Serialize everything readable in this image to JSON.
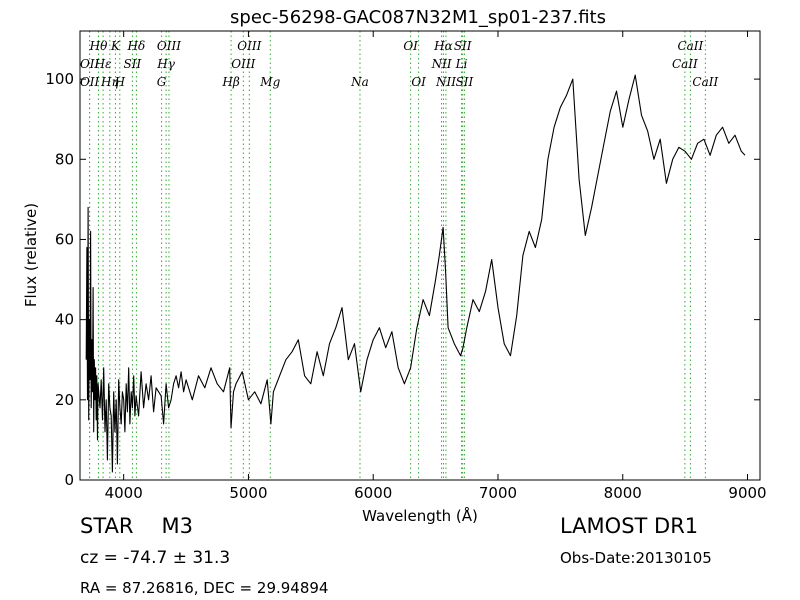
{
  "chart_data": {
    "type": "line",
    "title": "spec-56298-GAC087N32M1_sp01-237.fits",
    "xlabel": "Wavelength (Å)",
    "ylabel": "Flux (relative)",
    "xlim": [
      3650,
      9100
    ],
    "ylim": [
      0,
      112
    ],
    "xticks": [
      4000,
      5000,
      6000,
      7000,
      8000,
      9000
    ],
    "yticks": [
      0,
      20,
      40,
      60,
      80,
      100
    ],
    "line_color": "#000000",
    "marker_color": "#33aa33",
    "grid": false,
    "series": [
      {
        "x": [
          3700,
          3705,
          3710,
          3715,
          3720,
          3725,
          3730,
          3735,
          3740,
          3745,
          3750,
          3755,
          3760,
          3765,
          3770,
          3775,
          3780,
          3785,
          3790,
          3795,
          3800,
          3810,
          3820,
          3830,
          3840,
          3850,
          3860,
          3870,
          3880,
          3890,
          3900,
          3910,
          3920,
          3930,
          3940,
          3950,
          3960,
          3970,
          3980,
          3990,
          4000,
          4010,
          4020,
          4030,
          4040,
          4050,
          4060,
          4070,
          4080,
          4090,
          4100,
          4120,
          4140,
          4160,
          4180,
          4200,
          4220,
          4240,
          4260,
          4280,
          4300,
          4320,
          4340,
          4360,
          4380,
          4400,
          4420,
          4440,
          4460,
          4480,
          4500,
          4550,
          4600,
          4650,
          4700,
          4750,
          4800,
          4850,
          4860,
          4880,
          4900,
          4950,
          5000,
          5050,
          5100,
          5150,
          5180,
          5200,
          5250,
          5300,
          5350,
          5400,
          5450,
          5500,
          5550,
          5600,
          5650,
          5700,
          5750,
          5800,
          5850,
          5900,
          5950,
          6000,
          6050,
          6100,
          6150,
          6200,
          6250,
          6300,
          6350,
          6400,
          6450,
          6500,
          6530,
          6560,
          6580,
          6600,
          6650,
          6700,
          6720,
          6750,
          6800,
          6850,
          6900,
          6950,
          7000,
          7050,
          7100,
          7150,
          7200,
          7250,
          7300,
          7350,
          7400,
          7450,
          7500,
          7550,
          7600,
          7650,
          7700,
          7750,
          7800,
          7850,
          7900,
          7950,
          8000,
          8050,
          8100,
          8150,
          8200,
          8250,
          8300,
          8350,
          8400,
          8450,
          8500,
          8550,
          8600,
          8650,
          8700,
          8750,
          8800,
          8850,
          8900,
          8950,
          8980
        ],
        "y": [
          30,
          58,
          20,
          68,
          15,
          40,
          25,
          62,
          18,
          35,
          22,
          48,
          12,
          30,
          20,
          28,
          15,
          26,
          10,
          24,
          22,
          18,
          25,
          15,
          28,
          12,
          20,
          5,
          24,
          18,
          16,
          2,
          22,
          12,
          20,
          4,
          25,
          18,
          14,
          22,
          20,
          12,
          24,
          17,
          28,
          14,
          22,
          18,
          26,
          16,
          21,
          16,
          27,
          18,
          24,
          20,
          26,
          17,
          23,
          22,
          21,
          14,
          24,
          18,
          20,
          24,
          26,
          23,
          27,
          22,
          25,
          20,
          26,
          23,
          28,
          24,
          22,
          28,
          13,
          22,
          24,
          27,
          20,
          22,
          19,
          25,
          14,
          22,
          26,
          30,
          32,
          35,
          26,
          24,
          32,
          26,
          34,
          38,
          43,
          30,
          34,
          22,
          30,
          35,
          38,
          33,
          37,
          28,
          24,
          28,
          38,
          45,
          41,
          50,
          56,
          63,
          52,
          38,
          34,
          31,
          33,
          38,
          45,
          42,
          47,
          55,
          43,
          34,
          31,
          41,
          56,
          62,
          58,
          65,
          80,
          88,
          93,
          96,
          100,
          75,
          61,
          68,
          76,
          84,
          92,
          97,
          88,
          95,
          101,
          91,
          87,
          80,
          85,
          74,
          80,
          83,
          82,
          80,
          84,
          85,
          81,
          86,
          88,
          84,
          86,
          82,
          81
        ]
      }
    ],
    "annotations": [
      {
        "label": "Hθ",
        "x": 3798,
        "row": 0
      },
      {
        "label": "K",
        "x": 3934,
        "row": 0
      },
      {
        "label": "Hδ",
        "x": 4102,
        "row": 0
      },
      {
        "label": "OIII",
        "x": 4363,
        "row": 0
      },
      {
        "label": "OIII",
        "x": 5007,
        "row": 0
      },
      {
        "label": "OI",
        "x": 6300,
        "row": 0
      },
      {
        "label": "Hα",
        "x": 6563,
        "row": 0
      },
      {
        "label": "SII",
        "x": 6717,
        "row": 0
      },
      {
        "label": "CaII",
        "x": 8542,
        "row": 0
      },
      {
        "label": "OII",
        "x": 3727,
        "row": 1
      },
      {
        "label": "Hε",
        "x": 3835,
        "row": 1
      },
      {
        "label": "SII",
        "x": 4070,
        "row": 1
      },
      {
        "label": "Hγ",
        "x": 4340,
        "row": 1
      },
      {
        "label": "OIII",
        "x": 4959,
        "row": 1
      },
      {
        "label": "NII",
        "x": 6548,
        "row": 1
      },
      {
        "label": "Li",
        "x": 6708,
        "row": 1
      },
      {
        "label": "CaII",
        "x": 8498,
        "row": 1
      },
      {
        "label": "OII",
        "x": 3727,
        "row": 2
      },
      {
        "label": "Hη",
        "x": 3889,
        "row": 2
      },
      {
        "label": "H",
        "x": 3969,
        "row": 2
      },
      {
        "label": "G",
        "x": 4304,
        "row": 2
      },
      {
        "label": "Hβ",
        "x": 4861,
        "row": 2
      },
      {
        "label": "Mg",
        "x": 5175,
        "row": 2
      },
      {
        "label": "Na",
        "x": 5894,
        "row": 2
      },
      {
        "label": "OI",
        "x": 6364,
        "row": 2
      },
      {
        "label": "NII",
        "x": 6583,
        "row": 2
      },
      {
        "label": "SII",
        "x": 6731,
        "row": 2
      },
      {
        "label": "CaII",
        "x": 8662,
        "row": 2
      }
    ]
  },
  "info": {
    "object_class": "STAR",
    "subclass": "M3",
    "cz": "cz = -74.7  ± 31.3",
    "radec": "RA = 87.26816, DEC = 29.94894",
    "survey": "LAMOST DR1",
    "obs_date": "Obs-Date:20130105"
  }
}
